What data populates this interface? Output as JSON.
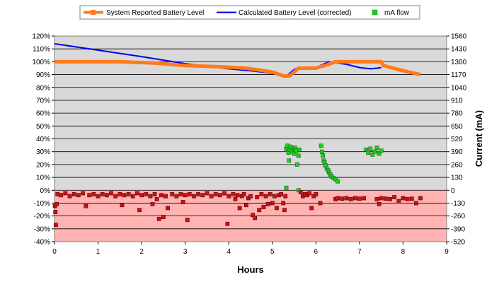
{
  "chart_data": {
    "type": "line",
    "title": "",
    "xlabel": "Hours",
    "ylabel": "",
    "y2label": "Current (mA)",
    "xlim": [
      0,
      9
    ],
    "ylim": [
      -40,
      120
    ],
    "y2lim": [
      -520,
      1560
    ],
    "x_ticks": [
      "0",
      "1",
      "2",
      "3",
      "4",
      "5",
      "6",
      "7",
      "8",
      "9"
    ],
    "y_ticks": [
      "-40%",
      "-30%",
      "-20%",
      "-10%",
      "0%",
      "10%",
      "20%",
      "30%",
      "40%",
      "50%",
      "60%",
      "70%",
      "80%",
      "90%",
      "100%",
      "110%",
      "120%"
    ],
    "y2_ticks": [
      "-520",
      "-390",
      "-260",
      "-130",
      "0",
      "130",
      "260",
      "390",
      "520",
      "650",
      "780",
      "910",
      "1040",
      "1170",
      "1300",
      "1430",
      "1560"
    ],
    "grid": true,
    "legend_position": "top",
    "colors": {
      "plot_upper": "#d9d9d9",
      "plot_lower": "#ffb3b3",
      "reported": "#ff7a1a",
      "calculated": "#0000ee",
      "flow_positive": "#22cc22",
      "flow_negative": "#cc1111"
    },
    "legend": [
      {
        "label": "System Reported Battery Level",
        "marker": "line-square",
        "color": "#ff7a1a"
      },
      {
        "label": "Calculated Battery Level (corrected)",
        "marker": "line",
        "color": "#0000ee"
      },
      {
        "label": "mA flow",
        "marker": "square",
        "color": "#22cc22"
      }
    ],
    "series": [
      {
        "name": "System Reported Battery Level",
        "axis": "left",
        "x": [
          0,
          1.5,
          2.3,
          3.0,
          3.9,
          4.4,
          5.0,
          5.25,
          5.4,
          5.6,
          6.0,
          6.2,
          6.45,
          7.5,
          7.55,
          8.0,
          8.4
        ],
        "y": [
          100,
          100,
          99,
          97,
          96,
          95,
          92,
          89,
          89,
          95,
          95,
          97,
          100,
          100,
          97,
          93,
          90
        ]
      },
      {
        "name": "Calculated Battery Level (corrected)",
        "axis": "left",
        "x": [
          0,
          1.0,
          2.0,
          3.0,
          4.0,
          4.5,
          5.0,
          5.2,
          5.3,
          5.5,
          5.6,
          6.0,
          6.3,
          6.7,
          7.0,
          7.25,
          7.4,
          7.5
        ],
        "y": [
          114,
          109,
          104,
          98.5,
          94.5,
          93,
          91,
          90,
          88,
          94,
          95.5,
          95.5,
          100,
          98,
          95.5,
          94.5,
          95,
          95.5
        ]
      },
      {
        "name": "mA flow",
        "axis": "right",
        "points": [
          [
            0.01,
            -160
          ],
          [
            0.02,
            -220
          ],
          [
            0.03,
            -350
          ],
          [
            0.05,
            -140
          ],
          [
            0.07,
            -40
          ],
          [
            0.15,
            -50
          ],
          [
            0.25,
            -30
          ],
          [
            0.35,
            -60
          ],
          [
            0.45,
            -40
          ],
          [
            0.55,
            -50
          ],
          [
            0.65,
            -30
          ],
          [
            0.72,
            -160
          ],
          [
            0.8,
            -50
          ],
          [
            0.9,
            -40
          ],
          [
            1.0,
            -60
          ],
          [
            1.1,
            -40
          ],
          [
            1.2,
            -50
          ],
          [
            1.3,
            -30
          ],
          [
            1.4,
            -60
          ],
          [
            1.5,
            -40
          ],
          [
            1.55,
            -150
          ],
          [
            1.6,
            -50
          ],
          [
            1.7,
            -40
          ],
          [
            1.8,
            -60
          ],
          [
            1.9,
            -30
          ],
          [
            1.95,
            -200
          ],
          [
            2.0,
            -50
          ],
          [
            2.1,
            -40
          ],
          [
            2.2,
            -60
          ],
          [
            2.25,
            -140
          ],
          [
            2.3,
            -40
          ],
          [
            2.35,
            -90
          ],
          [
            2.4,
            -290
          ],
          [
            2.45,
            -50
          ],
          [
            2.5,
            -270
          ],
          [
            2.55,
            -60
          ],
          [
            2.6,
            -180
          ],
          [
            2.7,
            -40
          ],
          [
            2.8,
            -60
          ],
          [
            2.9,
            -40
          ],
          [
            2.95,
            -120
          ],
          [
            3.0,
            -50
          ],
          [
            3.05,
            -300
          ],
          [
            3.1,
            -40
          ],
          [
            3.2,
            -60
          ],
          [
            3.3,
            -40
          ],
          [
            3.4,
            -50
          ],
          [
            3.5,
            -30
          ],
          [
            3.6,
            -60
          ],
          [
            3.7,
            -40
          ],
          [
            3.8,
            -50
          ],
          [
            3.9,
            -30
          ],
          [
            3.97,
            -340
          ],
          [
            4.0,
            -60
          ],
          [
            4.1,
            -40
          ],
          [
            4.15,
            -90
          ],
          [
            4.2,
            -50
          ],
          [
            4.25,
            -180
          ],
          [
            4.3,
            -60
          ],
          [
            4.35,
            -40
          ],
          [
            4.4,
            -150
          ],
          [
            4.45,
            -80
          ],
          [
            4.5,
            -60
          ],
          [
            4.55,
            -250
          ],
          [
            4.6,
            -280
          ],
          [
            4.65,
            -70
          ],
          [
            4.7,
            -200
          ],
          [
            4.75,
            -40
          ],
          [
            4.8,
            -170
          ],
          [
            4.85,
            -60
          ],
          [
            4.9,
            -140
          ],
          [
            4.95,
            -40
          ],
          [
            5.0,
            -130
          ],
          [
            5.05,
            -60
          ],
          [
            5.1,
            -180
          ],
          [
            5.15,
            -50
          ],
          [
            5.2,
            -40
          ],
          [
            5.25,
            -130
          ],
          [
            5.28,
            -200
          ],
          [
            5.3,
            -60
          ],
          [
            5.32,
            25
          ],
          [
            5.32,
            420
          ],
          [
            5.35,
            450
          ],
          [
            5.37,
            380
          ],
          [
            5.38,
            300
          ],
          [
            5.4,
            410
          ],
          [
            5.42,
            440
          ],
          [
            5.45,
            390
          ],
          [
            5.48,
            420
          ],
          [
            5.5,
            370
          ],
          [
            5.52,
            430
          ],
          [
            5.55,
            400
          ],
          [
            5.57,
            260
          ],
          [
            5.6,
            350
          ],
          [
            5.62,
            410
          ],
          [
            5.6,
            0
          ],
          [
            5.65,
            -20
          ],
          [
            5.7,
            -60
          ],
          [
            5.75,
            -40
          ],
          [
            5.8,
            -50
          ],
          [
            5.85,
            -30
          ],
          [
            5.9,
            -180
          ],
          [
            5.95,
            -60
          ],
          [
            6.0,
            -40
          ],
          [
            6.1,
            -130
          ],
          [
            6.12,
            450
          ],
          [
            6.14,
            390
          ],
          [
            6.16,
            350
          ],
          [
            6.18,
            300
          ],
          [
            6.2,
            280
          ],
          [
            6.22,
            250
          ],
          [
            6.25,
            220
          ],
          [
            6.28,
            200
          ],
          [
            6.3,
            180
          ],
          [
            6.33,
            160
          ],
          [
            6.36,
            140
          ],
          [
            6.4,
            125
          ],
          [
            6.45,
            110
          ],
          [
            6.5,
            90
          ],
          [
            6.45,
            -90
          ],
          [
            6.5,
            -80
          ],
          [
            6.6,
            -85
          ],
          [
            6.7,
            -80
          ],
          [
            6.8,
            -90
          ],
          [
            6.9,
            -80
          ],
          [
            7.0,
            -85
          ],
          [
            7.1,
            -80
          ],
          [
            7.15,
            410
          ],
          [
            7.2,
            380
          ],
          [
            7.25,
            420
          ],
          [
            7.3,
            360
          ],
          [
            7.35,
            390
          ],
          [
            7.4,
            430
          ],
          [
            7.45,
            370
          ],
          [
            7.5,
            400
          ],
          [
            7.4,
            -90
          ],
          [
            7.45,
            -140
          ],
          [
            7.5,
            -80
          ],
          [
            7.6,
            -85
          ],
          [
            7.7,
            -90
          ],
          [
            7.8,
            -70
          ],
          [
            7.9,
            -110
          ],
          [
            8.0,
            -80
          ],
          [
            8.1,
            -90
          ],
          [
            8.2,
            -85
          ],
          [
            8.3,
            -130
          ],
          [
            8.4,
            -80
          ]
        ]
      }
    ]
  }
}
